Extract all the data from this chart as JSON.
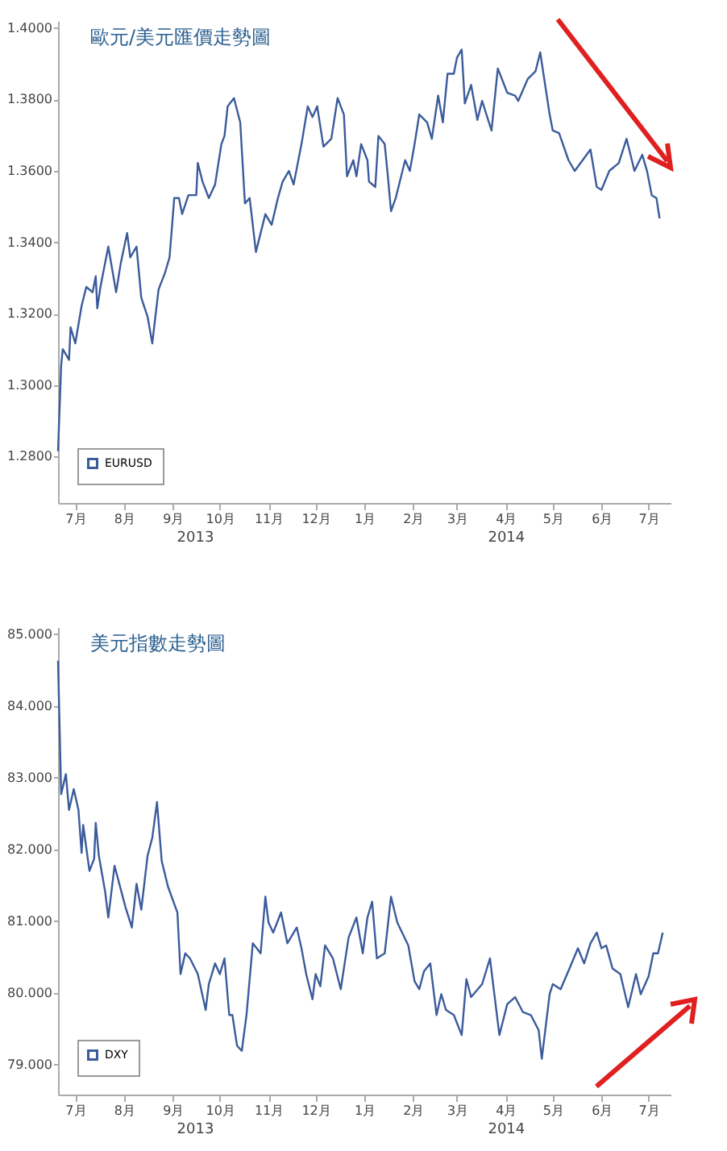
{
  "chart_data": [
    {
      "type": "line",
      "title": "歐元/美元匯價走勢圖",
      "xlim": [
        "2013-06-20",
        "2014-07-15"
      ],
      "ylim": [
        1.267,
        1.402
      ],
      "yticks": [
        {
          "value": 1.28,
          "label": "1.2800"
        },
        {
          "value": 1.3,
          "label": "1.3000"
        },
        {
          "value": 1.32,
          "label": "1.3200"
        },
        {
          "value": 1.34,
          "label": "1.3400"
        },
        {
          "value": 1.36,
          "label": "1.3600"
        },
        {
          "value": 1.38,
          "label": "1.3800"
        },
        {
          "value": 1.4,
          "label": "1.4000"
        }
      ],
      "xticks": [
        {
          "value": "2013-07-01",
          "label": "7月"
        },
        {
          "value": "2013-08-01",
          "label": "8月"
        },
        {
          "value": "2013-09-01",
          "label": "9月"
        },
        {
          "value": "2013-10-01",
          "label": "10月"
        },
        {
          "value": "2013-11-01",
          "label": "11月"
        },
        {
          "value": "2013-12-01",
          "label": "12月"
        },
        {
          "value": "2014-01-01",
          "label": "1月"
        },
        {
          "value": "2014-02-01",
          "label": "2月"
        },
        {
          "value": "2014-03-01",
          "label": "3月"
        },
        {
          "value": "2014-04-01",
          "label": "4月"
        },
        {
          "value": "2014-05-01",
          "label": "5月"
        },
        {
          "value": "2014-06-01",
          "label": "6月"
        },
        {
          "value": "2014-07-01",
          "label": "7月"
        }
      ],
      "annotations": [
        "2013",
        "2014"
      ],
      "legend": "bottom left",
      "grid": false,
      "series": [
        {
          "name": "EURUSD",
          "color": "#3b5b9b",
          "x": [
            "2013-06-20",
            "2013-06-22",
            "2013-06-23",
            "2013-06-27",
            "2013-06-28",
            "2013-07-01",
            "2013-07-05",
            "2013-07-08",
            "2013-07-12",
            "2013-07-14",
            "2013-07-15",
            "2013-07-17",
            "2013-07-22",
            "2013-07-27",
            "2013-07-30",
            "2013-08-03",
            "2013-08-05",
            "2013-08-09",
            "2013-08-12",
            "2013-08-16",
            "2013-08-19",
            "2013-08-23",
            "2013-08-27",
            "2013-08-30",
            "2013-09-02",
            "2013-09-05",
            "2013-09-07",
            "2013-09-11",
            "2013-09-16",
            "2013-09-17",
            "2013-09-20",
            "2013-09-24",
            "2013-09-28",
            "2013-10-02",
            "2013-10-04",
            "2013-10-06",
            "2013-10-10",
            "2013-10-14",
            "2013-10-17",
            "2013-10-20",
            "2013-10-24",
            "2013-10-30",
            "2013-11-03",
            "2013-11-07",
            "2013-11-10",
            "2013-11-14",
            "2013-11-17",
            "2013-11-22",
            "2013-11-26",
            "2013-11-29",
            "2013-12-02",
            "2013-12-06",
            "2013-12-11",
            "2013-12-15",
            "2013-12-19",
            "2013-12-21",
            "2013-12-25",
            "2013-12-27",
            "2013-12-30",
            "2014-01-03",
            "2014-01-04",
            "2014-01-08",
            "2014-01-10",
            "2014-01-14",
            "2014-01-16",
            "2014-01-18",
            "2014-01-21",
            "2014-01-27",
            "2014-01-30",
            "2014-02-02",
            "2014-02-05",
            "2014-02-10",
            "2014-02-13",
            "2014-02-17",
            "2014-02-20",
            "2014-02-23",
            "2014-02-27",
            "2014-03-01",
            "2014-03-04",
            "2014-03-06",
            "2014-03-10",
            "2014-03-14",
            "2014-03-17",
            "2014-03-23",
            "2014-03-27",
            "2014-04-02",
            "2014-04-07",
            "2014-04-09",
            "2014-04-15",
            "2014-04-20",
            "2014-04-23",
            "2014-04-29",
            "2014-05-01",
            "2014-05-05",
            "2014-05-11",
            "2014-05-15",
            "2014-05-20",
            "2014-05-25",
            "2014-05-29",
            "2014-06-01",
            "2014-06-06",
            "2014-06-12",
            "2014-06-17",
            "2014-06-22",
            "2014-06-27",
            "2014-06-30",
            "2014-07-03",
            "2014-07-06",
            "2014-07-08"
          ],
          "values": [
            1.2815,
            1.3056,
            1.3101,
            1.3071,
            1.3162,
            1.3117,
            1.3222,
            1.3275,
            1.326,
            1.3305,
            1.3215,
            1.3275,
            1.3388,
            1.326,
            1.3343,
            1.3426,
            1.3358,
            1.3388,
            1.3245,
            1.3192,
            1.3117,
            1.3268,
            1.3313,
            1.3358,
            1.3524,
            1.3524,
            1.3479,
            1.3532,
            1.3532,
            1.3622,
            1.357,
            1.3524,
            1.3562,
            1.3675,
            1.3698,
            1.3781,
            1.3804,
            1.3736,
            1.3509,
            1.3524,
            1.3373,
            1.3479,
            1.3449,
            1.3524,
            1.357,
            1.36,
            1.3562,
            1.3675,
            1.3781,
            1.3751,
            1.3781,
            1.3668,
            1.369,
            1.3804,
            1.3758,
            1.3585,
            1.363,
            1.3585,
            1.3675,
            1.363,
            1.357,
            1.3555,
            1.3698,
            1.3675,
            1.3585,
            1.3487,
            1.3524,
            1.363,
            1.36,
            1.3675,
            1.3758,
            1.3736,
            1.369,
            1.3811,
            1.3736,
            1.3872,
            1.3872,
            1.3917,
            1.394,
            1.3789,
            1.3841,
            1.3743,
            1.3796,
            1.3713,
            1.3887,
            1.3819,
            1.3811,
            1.3796,
            1.3857,
            1.3879,
            1.3932,
            1.3758,
            1.3713,
            1.3706,
            1.363,
            1.36,
            1.363,
            1.366,
            1.3555,
            1.3547,
            1.36,
            1.3622,
            1.369,
            1.36,
            1.3645,
            1.36,
            1.3532,
            1.3524,
            1.3467
          ]
        }
      ]
    },
    {
      "type": "line",
      "title": "美元指數走勢圖",
      "xlim": [
        "2013-06-20",
        "2014-07-15"
      ],
      "ylim": [
        78.58,
        85.1
      ],
      "yticks": [
        {
          "value": 79,
          "label": "79.000"
        },
        {
          "value": 80,
          "label": "80.000"
        },
        {
          "value": 81,
          "label": "81.000"
        },
        {
          "value": 82,
          "label": "82.000"
        },
        {
          "value": 83,
          "label": "83.000"
        },
        {
          "value": 84,
          "label": "84.000"
        },
        {
          "value": 85,
          "label": "85.000"
        }
      ],
      "xticks": [
        {
          "value": "2013-07-01",
          "label": "7月"
        },
        {
          "value": "2013-08-01",
          "label": "8月"
        },
        {
          "value": "2013-09-01",
          "label": "9月"
        },
        {
          "value": "2013-10-01",
          "label": "10月"
        },
        {
          "value": "2013-11-01",
          "label": "11月"
        },
        {
          "value": "2013-12-01",
          "label": "12月"
        },
        {
          "value": "2014-01-01",
          "label": "1月"
        },
        {
          "value": "2014-02-01",
          "label": "2月"
        },
        {
          "value": "2014-03-01",
          "label": "3月"
        },
        {
          "value": "2014-04-01",
          "label": "4月"
        },
        {
          "value": "2014-05-01",
          "label": "5月"
        },
        {
          "value": "2014-06-01",
          "label": "6月"
        },
        {
          "value": "2014-07-01",
          "label": "7月"
        }
      ],
      "annotations": [
        "2013",
        "2014"
      ],
      "legend": "bottom left",
      "grid": false,
      "series": [
        {
          "name": "DXY",
          "color": "#3b5b9b",
          "x": [
            "2013-06-20",
            "2013-06-22",
            "2013-06-25",
            "2013-06-27",
            "2013-06-30",
            "2013-07-03",
            "2013-07-05",
            "2013-07-06",
            "2013-07-10",
            "2013-07-13",
            "2013-07-14",
            "2013-07-16",
            "2013-07-20",
            "2013-07-22",
            "2013-07-26",
            "2013-08-02",
            "2013-08-06",
            "2013-08-09",
            "2013-08-12",
            "2013-08-16",
            "2013-08-19",
            "2013-08-22",
            "2013-08-25",
            "2013-08-29",
            "2013-09-04",
            "2013-09-06",
            "2013-09-09",
            "2013-09-12",
            "2013-09-17",
            "2013-09-22",
            "2013-09-24",
            "2013-09-28",
            "2013-10-01",
            "2013-10-04",
            "2013-10-07",
            "2013-10-09",
            "2013-10-12",
            "2013-10-15",
            "2013-10-18",
            "2013-10-22",
            "2013-10-27",
            "2013-10-30",
            "2013-11-01",
            "2013-11-04",
            "2013-11-09",
            "2013-11-13",
            "2013-11-19",
            "2013-11-22",
            "2013-11-25",
            "2013-11-29",
            "2013-12-01",
            "2013-12-04",
            "2013-12-07",
            "2013-12-12",
            "2013-12-17",
            "2013-12-22",
            "2013-12-27",
            "2013-12-31",
            "2014-01-03",
            "2014-01-06",
            "2014-01-09",
            "2014-01-14",
            "2014-01-18",
            "2014-01-22",
            "2014-01-29",
            "2014-02-02",
            "2014-02-05",
            "2014-02-08",
            "2014-02-12",
            "2014-02-16",
            "2014-02-19",
            "2014-02-22",
            "2014-02-27",
            "2014-03-04",
            "2014-03-07",
            "2014-03-10",
            "2014-03-17",
            "2014-03-22",
            "2014-03-28",
            "2014-04-02",
            "2014-04-07",
            "2014-04-12",
            "2014-04-17",
            "2014-04-22",
            "2014-04-24",
            "2014-04-29",
            "2014-05-01",
            "2014-05-06",
            "2014-05-13",
            "2014-05-17",
            "2014-05-21",
            "2014-05-25",
            "2014-05-29",
            "2014-06-01",
            "2014-06-04",
            "2014-06-08",
            "2014-06-13",
            "2014-06-18",
            "2014-06-23",
            "2014-06-26",
            "2014-07-01",
            "2014-07-04",
            "2014-07-07",
            "2014-07-10"
          ],
          "values": [
            84.63,
            82.77,
            83.05,
            82.55,
            82.84,
            82.55,
            81.95,
            82.34,
            81.7,
            81.87,
            82.37,
            81.91,
            81.41,
            81.05,
            81.77,
            81.19,
            80.91,
            81.52,
            81.16,
            81.91,
            82.16,
            82.66,
            81.84,
            81.48,
            81.12,
            80.26,
            80.55,
            80.48,
            80.26,
            79.76,
            80.12,
            80.41,
            80.26,
            80.48,
            79.69,
            79.69,
            79.26,
            79.19,
            79.69,
            80.69,
            80.55,
            81.34,
            80.98,
            80.84,
            81.12,
            80.69,
            80.91,
            80.62,
            80.26,
            79.91,
            80.26,
            80.09,
            80.66,
            80.48,
            80.05,
            80.77,
            81.05,
            80.55,
            81.05,
            81.27,
            80.48,
            80.55,
            81.34,
            80.98,
            80.66,
            80.16,
            80.05,
            80.3,
            80.41,
            79.69,
            79.98,
            79.76,
            79.69,
            79.41,
            80.19,
            79.94,
            80.12,
            80.48,
            79.41,
            79.84,
            79.94,
            79.73,
            79.69,
            79.48,
            79.08,
            79.98,
            80.12,
            80.05,
            80.41,
            80.62,
            80.41,
            80.69,
            80.84,
            80.62,
            80.66,
            80.34,
            80.26,
            79.8,
            80.26,
            79.98,
            80.23,
            80.55,
            80.55,
            80.84
          ]
        }
      ]
    }
  ]
}
